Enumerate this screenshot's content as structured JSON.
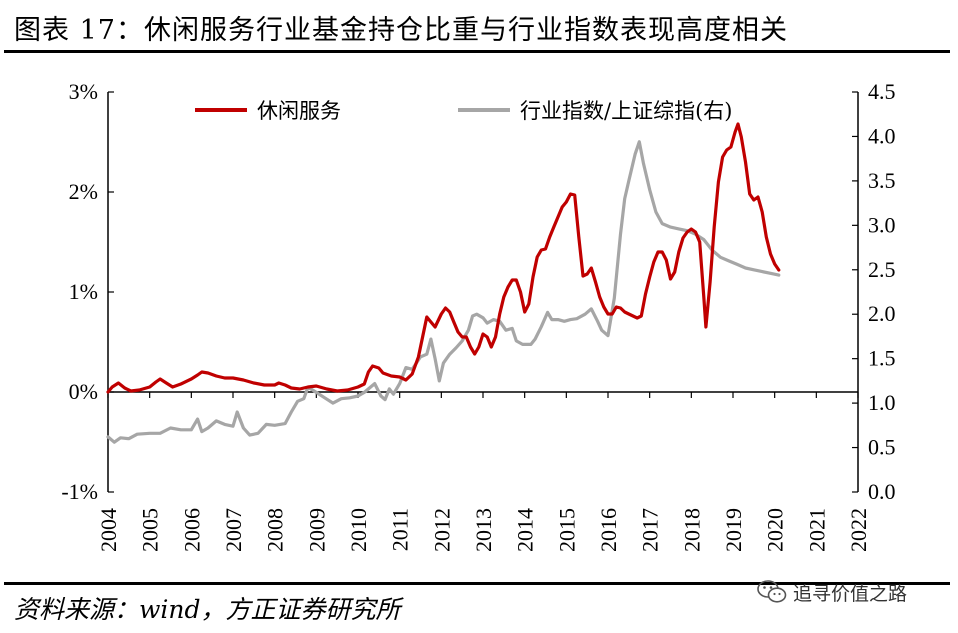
{
  "title": "图表 17：休闲服务行业基金持仓比重与行业指数表现高度相关",
  "source": "资料来源：wind，方正证券研究所",
  "watermark": {
    "text": "追寻价值之路",
    "icon": "wechat-icon"
  },
  "chart_data": {
    "type": "line",
    "x_ticks": [
      "2004",
      "2005",
      "2006",
      "2007",
      "2008",
      "2009",
      "2010",
      "2011",
      "2012",
      "2013",
      "2014",
      "2015",
      "2016",
      "2017",
      "2018",
      "2019",
      "2020",
      "2021",
      "2022"
    ],
    "y_left": {
      "ticks": [
        "3%",
        "2%",
        "1%",
        "0%",
        "-1%"
      ],
      "range": [
        -1,
        3
      ],
      "unit": "%"
    },
    "y_right": {
      "ticks": [
        "4.5",
        "4.0",
        "3.5",
        "3.0",
        "2.5",
        "2.0",
        "1.5",
        "1.0",
        "0.5",
        "0.0"
      ],
      "range": [
        0,
        4.5
      ]
    },
    "legend": {
      "position": "top"
    },
    "grid": false,
    "series": [
      {
        "name": "休闲服务",
        "axis": "left",
        "color": "#C00000",
        "points": [
          [
            2004.0,
            0.0
          ],
          [
            2004.1,
            0.05
          ],
          [
            2004.25,
            0.09
          ],
          [
            2004.4,
            0.04
          ],
          [
            2004.55,
            0.01
          ],
          [
            2004.75,
            0.02
          ],
          [
            2005.0,
            0.05
          ],
          [
            2005.15,
            0.1
          ],
          [
            2005.25,
            0.13
          ],
          [
            2005.4,
            0.09
          ],
          [
            2005.55,
            0.05
          ],
          [
            2005.75,
            0.08
          ],
          [
            2006.0,
            0.13
          ],
          [
            2006.15,
            0.17
          ],
          [
            2006.25,
            0.2
          ],
          [
            2006.4,
            0.19
          ],
          [
            2006.6,
            0.16
          ],
          [
            2006.8,
            0.14
          ],
          [
            2007.0,
            0.14
          ],
          [
            2007.25,
            0.12
          ],
          [
            2007.5,
            0.09
          ],
          [
            2007.75,
            0.07
          ],
          [
            2008.0,
            0.07
          ],
          [
            2008.1,
            0.09
          ],
          [
            2008.25,
            0.07
          ],
          [
            2008.4,
            0.04
          ],
          [
            2008.6,
            0.03
          ],
          [
            2008.8,
            0.05
          ],
          [
            2009.0,
            0.06
          ],
          [
            2009.25,
            0.03
          ],
          [
            2009.5,
            0.01
          ],
          [
            2009.75,
            0.02
          ],
          [
            2010.0,
            0.05
          ],
          [
            2010.1,
            0.07
          ],
          [
            2010.15,
            0.08
          ],
          [
            2010.25,
            0.2
          ],
          [
            2010.35,
            0.26
          ],
          [
            2010.5,
            0.24
          ],
          [
            2010.6,
            0.19
          ],
          [
            2010.8,
            0.16
          ],
          [
            2011.0,
            0.15
          ],
          [
            2011.15,
            0.12
          ],
          [
            2011.3,
            0.18
          ],
          [
            2011.45,
            0.35
          ],
          [
            2011.55,
            0.55
          ],
          [
            2011.65,
            0.75
          ],
          [
            2011.75,
            0.7
          ],
          [
            2011.85,
            0.65
          ],
          [
            2012.0,
            0.78
          ],
          [
            2012.1,
            0.84
          ],
          [
            2012.2,
            0.8
          ],
          [
            2012.3,
            0.7
          ],
          [
            2012.4,
            0.6
          ],
          [
            2012.5,
            0.55
          ],
          [
            2012.6,
            0.55
          ],
          [
            2012.7,
            0.45
          ],
          [
            2012.8,
            0.38
          ],
          [
            2012.9,
            0.45
          ],
          [
            2013.0,
            0.58
          ],
          [
            2013.1,
            0.55
          ],
          [
            2013.2,
            0.45
          ],
          [
            2013.3,
            0.55
          ],
          [
            2013.4,
            0.78
          ],
          [
            2013.5,
            0.95
          ],
          [
            2013.6,
            1.05
          ],
          [
            2013.7,
            1.12
          ],
          [
            2013.8,
            1.12
          ],
          [
            2013.9,
            1.0
          ],
          [
            2014.0,
            0.8
          ],
          [
            2014.1,
            0.88
          ],
          [
            2014.2,
            1.15
          ],
          [
            2014.3,
            1.35
          ],
          [
            2014.4,
            1.42
          ],
          [
            2014.5,
            1.43
          ],
          [
            2014.6,
            1.55
          ],
          [
            2014.7,
            1.65
          ],
          [
            2014.8,
            1.75
          ],
          [
            2014.9,
            1.85
          ],
          [
            2015.0,
            1.9
          ],
          [
            2015.1,
            1.98
          ],
          [
            2015.2,
            1.97
          ],
          [
            2015.3,
            1.55
          ],
          [
            2015.4,
            1.16
          ],
          [
            2015.5,
            1.18
          ],
          [
            2015.6,
            1.24
          ],
          [
            2015.7,
            1.1
          ],
          [
            2015.8,
            0.95
          ],
          [
            2015.9,
            0.85
          ],
          [
            2016.0,
            0.78
          ],
          [
            2016.1,
            0.78
          ],
          [
            2016.2,
            0.85
          ],
          [
            2016.3,
            0.84
          ],
          [
            2016.4,
            0.8
          ],
          [
            2016.5,
            0.78
          ],
          [
            2016.6,
            0.76
          ],
          [
            2016.7,
            0.74
          ],
          [
            2016.8,
            0.76
          ],
          [
            2016.9,
            0.98
          ],
          [
            2017.0,
            1.15
          ],
          [
            2017.1,
            1.3
          ],
          [
            2017.2,
            1.4
          ],
          [
            2017.3,
            1.4
          ],
          [
            2017.4,
            1.32
          ],
          [
            2017.5,
            1.13
          ],
          [
            2017.6,
            1.2
          ],
          [
            2017.7,
            1.4
          ],
          [
            2017.8,
            1.54
          ],
          [
            2017.9,
            1.6
          ],
          [
            2018.0,
            1.63
          ],
          [
            2018.1,
            1.6
          ],
          [
            2018.2,
            1.5
          ],
          [
            2018.3,
            0.95
          ],
          [
            2018.35,
            0.65
          ],
          [
            2018.45,
            1.1
          ],
          [
            2018.55,
            1.65
          ],
          [
            2018.65,
            2.1
          ],
          [
            2018.75,
            2.35
          ],
          [
            2018.85,
            2.42
          ],
          [
            2018.95,
            2.45
          ],
          [
            2019.05,
            2.6
          ],
          [
            2019.12,
            2.68
          ],
          [
            2019.2,
            2.55
          ],
          [
            2019.3,
            2.3
          ],
          [
            2019.4,
            1.98
          ],
          [
            2019.5,
            1.92
          ],
          [
            2019.6,
            1.95
          ],
          [
            2019.7,
            1.8
          ],
          [
            2019.8,
            1.55
          ],
          [
            2019.9,
            1.38
          ],
          [
            2020.0,
            1.28
          ],
          [
            2020.1,
            1.22
          ]
        ]
      },
      {
        "name": "行业指数/上证综指(右)",
        "axis": "right",
        "color": "#A6A6A6",
        "points": [
          [
            2004.0,
            0.62
          ],
          [
            2004.15,
            0.56
          ],
          [
            2004.3,
            0.61
          ],
          [
            2004.5,
            0.6
          ],
          [
            2004.7,
            0.65
          ],
          [
            2005.0,
            0.66
          ],
          [
            2005.25,
            0.66
          ],
          [
            2005.5,
            0.72
          ],
          [
            2005.75,
            0.7
          ],
          [
            2006.0,
            0.7
          ],
          [
            2006.15,
            0.82
          ],
          [
            2006.25,
            0.68
          ],
          [
            2006.4,
            0.72
          ],
          [
            2006.6,
            0.8
          ],
          [
            2006.8,
            0.76
          ],
          [
            2007.0,
            0.74
          ],
          [
            2007.1,
            0.9
          ],
          [
            2007.25,
            0.72
          ],
          [
            2007.4,
            0.64
          ],
          [
            2007.6,
            0.66
          ],
          [
            2007.8,
            0.76
          ],
          [
            2008.0,
            0.75
          ],
          [
            2008.25,
            0.77
          ],
          [
            2008.4,
            0.9
          ],
          [
            2008.55,
            1.02
          ],
          [
            2008.7,
            1.05
          ],
          [
            2008.8,
            1.18
          ],
          [
            2009.0,
            1.12
          ],
          [
            2009.2,
            1.06
          ],
          [
            2009.4,
            1.0
          ],
          [
            2009.6,
            1.05
          ],
          [
            2009.8,
            1.06
          ],
          [
            2010.0,
            1.08
          ],
          [
            2010.15,
            1.12
          ],
          [
            2010.3,
            1.18
          ],
          [
            2010.4,
            1.22
          ],
          [
            2010.55,
            1.08
          ],
          [
            2010.65,
            1.04
          ],
          [
            2010.75,
            1.16
          ],
          [
            2010.85,
            1.1
          ],
          [
            2011.0,
            1.22
          ],
          [
            2011.15,
            1.4
          ],
          [
            2011.3,
            1.38
          ],
          [
            2011.5,
            1.52
          ],
          [
            2011.65,
            1.55
          ],
          [
            2011.75,
            1.72
          ],
          [
            2011.85,
            1.5
          ],
          [
            2011.95,
            1.25
          ],
          [
            2012.05,
            1.45
          ],
          [
            2012.2,
            1.55
          ],
          [
            2012.35,
            1.62
          ],
          [
            2012.5,
            1.7
          ],
          [
            2012.65,
            1.82
          ],
          [
            2012.75,
            1.98
          ],
          [
            2012.85,
            2.0
          ],
          [
            2013.0,
            1.96
          ],
          [
            2013.1,
            1.9
          ],
          [
            2013.25,
            1.94
          ],
          [
            2013.4,
            1.92
          ],
          [
            2013.55,
            1.82
          ],
          [
            2013.7,
            1.84
          ],
          [
            2013.8,
            1.7
          ],
          [
            2013.95,
            1.66
          ],
          [
            2014.15,
            1.66
          ],
          [
            2014.25,
            1.72
          ],
          [
            2014.4,
            1.86
          ],
          [
            2014.55,
            2.02
          ],
          [
            2014.65,
            1.94
          ],
          [
            2014.8,
            1.94
          ],
          [
            2014.95,
            1.92
          ],
          [
            2015.1,
            1.94
          ],
          [
            2015.25,
            1.95
          ],
          [
            2015.45,
            2.0
          ],
          [
            2015.6,
            2.06
          ],
          [
            2015.75,
            1.92
          ],
          [
            2015.85,
            1.82
          ],
          [
            2016.0,
            1.76
          ],
          [
            2016.15,
            2.18
          ],
          [
            2016.3,
            2.9
          ],
          [
            2016.4,
            3.3
          ],
          [
            2016.5,
            3.5
          ],
          [
            2016.65,
            3.8
          ],
          [
            2016.75,
            3.94
          ],
          [
            2016.85,
            3.7
          ],
          [
            2017.0,
            3.4
          ],
          [
            2017.15,
            3.15
          ],
          [
            2017.3,
            3.02
          ],
          [
            2017.5,
            2.98
          ],
          [
            2017.7,
            2.96
          ],
          [
            2017.9,
            2.94
          ],
          [
            2018.1,
            2.9
          ],
          [
            2018.3,
            2.84
          ],
          [
            2018.5,
            2.72
          ],
          [
            2018.7,
            2.64
          ],
          [
            2018.9,
            2.6
          ],
          [
            2019.1,
            2.56
          ],
          [
            2019.3,
            2.52
          ],
          [
            2019.5,
            2.5
          ],
          [
            2019.7,
            2.48
          ],
          [
            2019.9,
            2.46
          ],
          [
            2020.1,
            2.44
          ]
        ]
      }
    ]
  }
}
